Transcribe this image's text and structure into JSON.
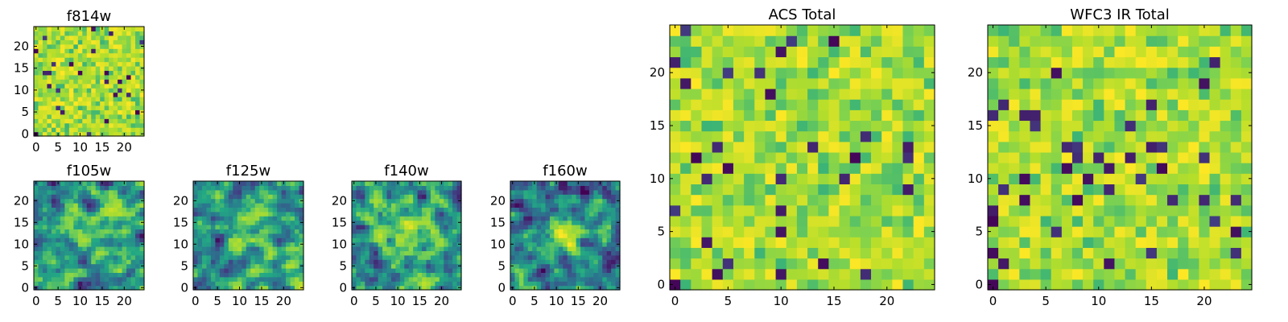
{
  "figure": {
    "description_free": true
  },
  "colors": {
    "background": "#ffffff",
    "axes_frame": "#000000",
    "colormap": "viridis",
    "viridis_stops": [
      "#440154",
      "#414487",
      "#2a788e",
      "#22a884",
      "#7ad151",
      "#b5de2b",
      "#fde725"
    ]
  },
  "chart_data": [
    {
      "type": "heatmap",
      "title": "f814w",
      "grid": [
        25,
        25
      ],
      "xlim": [
        -0.5,
        24.5
      ],
      "ylim": [
        -0.5,
        24.5
      ],
      "xticks": [
        0,
        5,
        10,
        15,
        20
      ],
      "yticks": [
        0,
        5,
        10,
        15,
        20
      ],
      "pattern": "noise",
      "seed": 11,
      "vmin": 0.0,
      "vmax": 1.0
    },
    {
      "type": "heatmap",
      "title": "f105w",
      "grid": [
        25,
        25
      ],
      "xlim": [
        -0.5,
        24.5
      ],
      "ylim": [
        -0.5,
        24.5
      ],
      "xticks": [
        0,
        5,
        10,
        15,
        20
      ],
      "yticks": [
        0,
        5,
        10,
        15,
        20
      ],
      "pattern": "smooth-source",
      "source_center": [
        12,
        12
      ],
      "source_sigma": 3.5,
      "source_amplitude": 0.25,
      "seed": 23,
      "vmin": 0.0,
      "vmax": 1.0
    },
    {
      "type": "heatmap",
      "title": "f125w",
      "grid": [
        25,
        25
      ],
      "xlim": [
        -0.5,
        24.5
      ],
      "ylim": [
        -0.5,
        24.5
      ],
      "xticks": [
        0,
        5,
        10,
        15,
        20
      ],
      "yticks": [
        0,
        5,
        10,
        15,
        20
      ],
      "pattern": "smooth-source",
      "source_center": [
        12,
        12
      ],
      "source_sigma": 3.0,
      "source_amplitude": 0.3,
      "seed": 37,
      "vmin": 0.0,
      "vmax": 1.0
    },
    {
      "type": "heatmap",
      "title": "f140w",
      "grid": [
        25,
        25
      ],
      "xlim": [
        -0.5,
        24.5
      ],
      "ylim": [
        -0.5,
        24.5
      ],
      "xticks": [
        0,
        5,
        10,
        15,
        20
      ],
      "yticks": [
        0,
        5,
        10,
        15,
        20
      ],
      "pattern": "smooth-source",
      "source_center": [
        12,
        12
      ],
      "source_sigma": 2.8,
      "source_amplitude": 0.38,
      "seed": 41,
      "vmin": 0.0,
      "vmax": 1.0
    },
    {
      "type": "heatmap",
      "title": "f160w",
      "grid": [
        25,
        25
      ],
      "xlim": [
        -0.5,
        24.5
      ],
      "ylim": [
        -0.5,
        24.5
      ],
      "xticks": [
        0,
        5,
        10,
        15,
        20
      ],
      "yticks": [
        0,
        5,
        10,
        15,
        20
      ],
      "pattern": "smooth-source",
      "source_center": [
        12,
        12
      ],
      "source_sigma": 2.5,
      "source_amplitude": 0.55,
      "background_level": 0.35,
      "seed": 53,
      "vmin": 0.0,
      "vmax": 1.0
    },
    {
      "type": "heatmap",
      "title": "ACS Total",
      "grid": [
        25,
        25
      ],
      "xlim": [
        -0.5,
        24.5
      ],
      "ylim": [
        -0.5,
        24.5
      ],
      "xticks": [
        0,
        5,
        10,
        15,
        20
      ],
      "yticks": [
        0,
        5,
        10,
        15,
        20
      ],
      "pattern": "noise",
      "seed": 67,
      "vmin": 0.0,
      "vmax": 1.0
    },
    {
      "type": "heatmap",
      "title": "WFC3 IR Total",
      "grid": [
        25,
        25
      ],
      "xlim": [
        -0.5,
        24.5
      ],
      "ylim": [
        -0.5,
        24.5
      ],
      "xticks": [
        0,
        5,
        10,
        15,
        20
      ],
      "yticks": [
        0,
        5,
        10,
        15,
        20
      ],
      "pattern": "noise",
      "seed": 79,
      "vmin": 0.0,
      "vmax": 1.0
    }
  ]
}
